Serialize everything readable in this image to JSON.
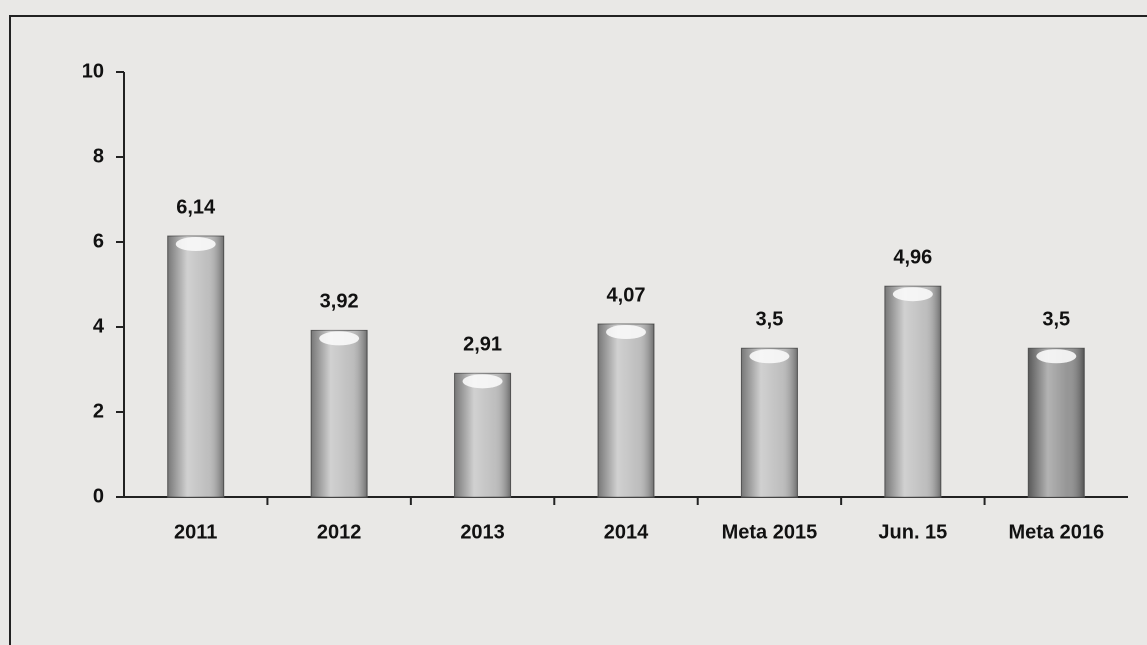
{
  "chart_data": {
    "type": "bar",
    "categories": [
      "2011",
      "2012",
      "2013",
      "2014",
      "Meta 2015",
      "Jun. 15",
      "Meta 2016"
    ],
    "values": [
      6.14,
      3.92,
      2.91,
      4.07,
      3.5,
      4.96,
      3.5
    ],
    "value_labels": [
      "6,14",
      "3,92",
      "2,91",
      "4,07",
      "3,5",
      "4,96",
      "3,5"
    ],
    "colors": [
      "#b8b8b8",
      "#b8b8b8",
      "#b8b8b8",
      "#b8b8b8",
      "#b8b8b8",
      "#b8b8b8",
      "#8a8a8a"
    ],
    "ylim": [
      0,
      10
    ],
    "yticks": [
      0,
      2,
      4,
      6,
      8,
      10
    ],
    "grid": false
  }
}
